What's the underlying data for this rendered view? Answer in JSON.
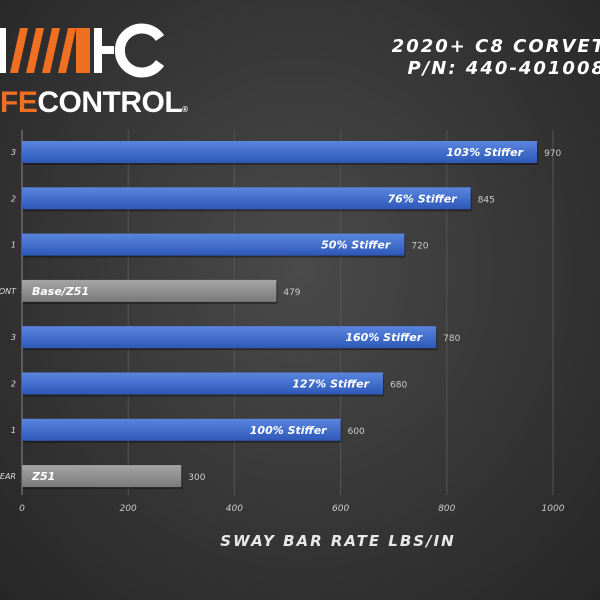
{
  "brand": {
    "logo_text_orange": "FE",
    "logo_text_white": "CONTROL",
    "registered": "®"
  },
  "header": {
    "title_line1": "2020+ C8 CORVET",
    "title_line2": "P/N: 440-401008"
  },
  "colors": {
    "blue": "#3a6bd0",
    "gray": "#8a8a8a",
    "orange": "#f07022"
  },
  "chart_data": {
    "type": "bar",
    "orientation": "horizontal",
    "categories": [
      "3",
      "2",
      "1",
      "ONT",
      "3",
      "2",
      "1",
      "EAR"
    ],
    "values": [
      970,
      845,
      720,
      479,
      780,
      680,
      600,
      300
    ],
    "bar_labels": [
      "103% Stiffer",
      "76% Stiffer",
      "50% Stiffer",
      "Base/Z51",
      "160% Stiffer",
      "127% Stiffer",
      "100% Stiffer",
      "Z51"
    ],
    "value_labels": [
      "970",
      "845",
      "720",
      "479",
      "780",
      "680",
      "600",
      "300"
    ],
    "bar_colors": [
      "blue",
      "blue",
      "blue",
      "gray",
      "blue",
      "blue",
      "blue",
      "gray"
    ],
    "xlabel": "SWAY BAR RATE LBS/IN",
    "xlim": [
      0,
      1000
    ],
    "xticks": [
      "0",
      "200",
      "400",
      "600",
      "800",
      "1000"
    ],
    "grid": true
  }
}
